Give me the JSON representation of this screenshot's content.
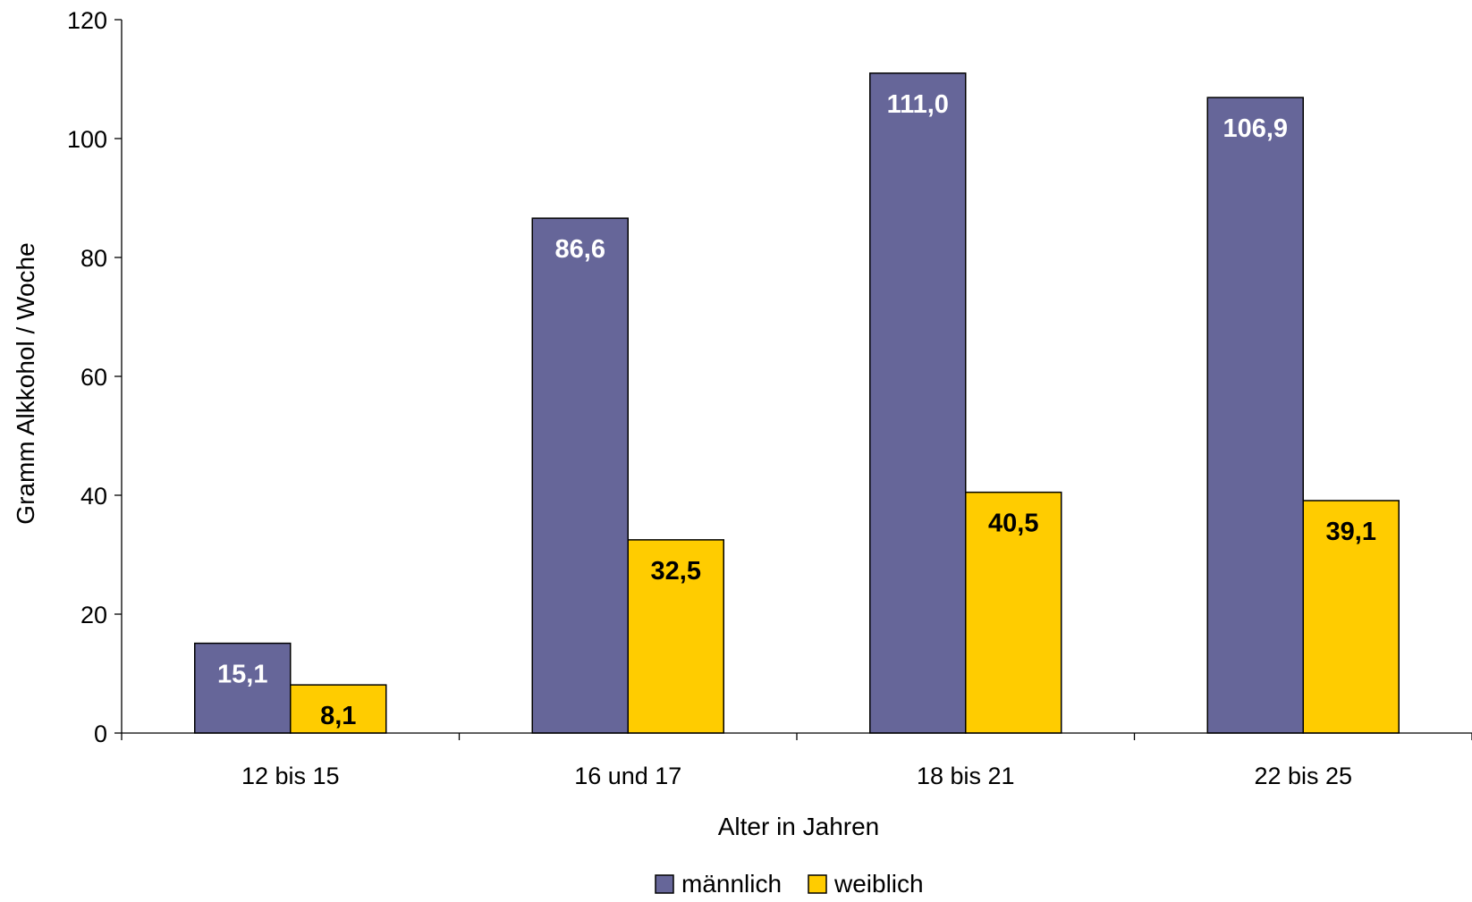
{
  "chart_data": {
    "type": "bar",
    "categories": [
      "12 bis 15",
      "16 und 17",
      "18 bis 21",
      "22 bis 25"
    ],
    "series": [
      {
        "name": "männlich",
        "values": [
          15.1,
          86.6,
          111.0,
          106.9
        ],
        "color": "#666699",
        "label_color": "#ffffff"
      },
      {
        "name": "weiblich",
        "values": [
          8.1,
          32.5,
          40.5,
          39.1
        ],
        "color": "#ffcc00",
        "label_color": "#000000"
      }
    ],
    "value_labels": [
      [
        "15,1",
        "86,6",
        "111,0",
        "106,9"
      ],
      [
        "8,1",
        "32,5",
        "40,5",
        "39,1"
      ]
    ],
    "xlabel": "Alter in Jahren",
    "ylabel": "Gramm Alkkohol / Woche",
    "ylim": [
      0,
      120
    ],
    "yticks": [
      0,
      20,
      40,
      60,
      80,
      100,
      120
    ],
    "ytick_labels": [
      "0",
      "20",
      "40",
      "60",
      "80",
      "100",
      "120"
    ],
    "grid": false,
    "legend_position": "bottom-center"
  }
}
